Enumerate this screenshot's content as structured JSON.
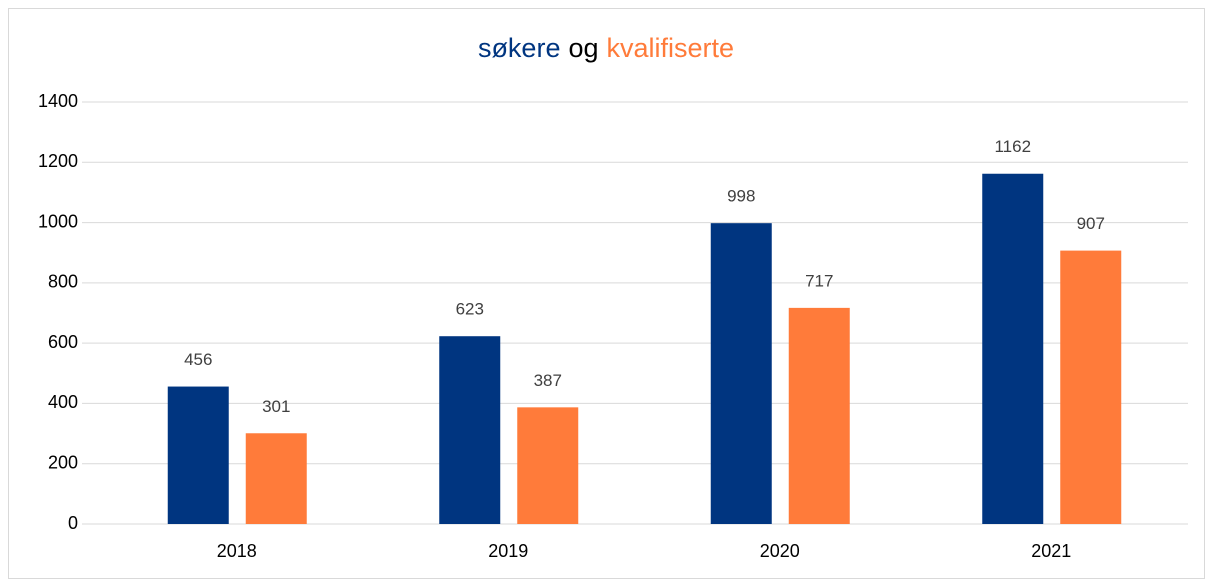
{
  "chart_data": {
    "type": "bar",
    "title_parts": [
      {
        "text": "søkere",
        "color": "#003580"
      },
      {
        "text": "og",
        "color": "#000000"
      },
      {
        "text": "kvalifiserte",
        "color": "#ff7b3a"
      }
    ],
    "categories": [
      "2018",
      "2019",
      "2020",
      "2021"
    ],
    "series": [
      {
        "color": "#003580",
        "values": [
          456,
          623,
          998,
          1162
        ]
      },
      {
        "color": "#ff7b3a",
        "values": [
          301,
          387,
          717,
          907
        ]
      }
    ],
    "ylim": [
      0,
      1400
    ],
    "yticks": [
      0,
      200,
      400,
      600,
      800,
      1000,
      1200,
      1400
    ],
    "grid": true
  }
}
